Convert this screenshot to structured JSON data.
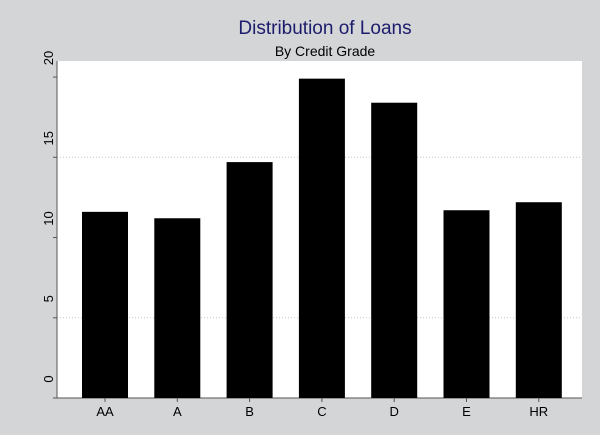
{
  "chart_data": {
    "type": "bar",
    "title": "Distribution of Loans",
    "subtitle": "By Credit Grade",
    "categories": [
      "AA",
      "A",
      "B",
      "C",
      "D",
      "E",
      "HR"
    ],
    "values": [
      11.6,
      11.2,
      14.7,
      19.9,
      18.4,
      11.7,
      12.2
    ],
    "xlabel": "",
    "ylabel": "",
    "ylim": [
      0,
      21
    ],
    "yticks": [
      0,
      5,
      10,
      15,
      20
    ],
    "grid": "dotted horizontal at 5 and 15",
    "bar_color": "#000000",
    "title_color": "#1c1c6c"
  }
}
